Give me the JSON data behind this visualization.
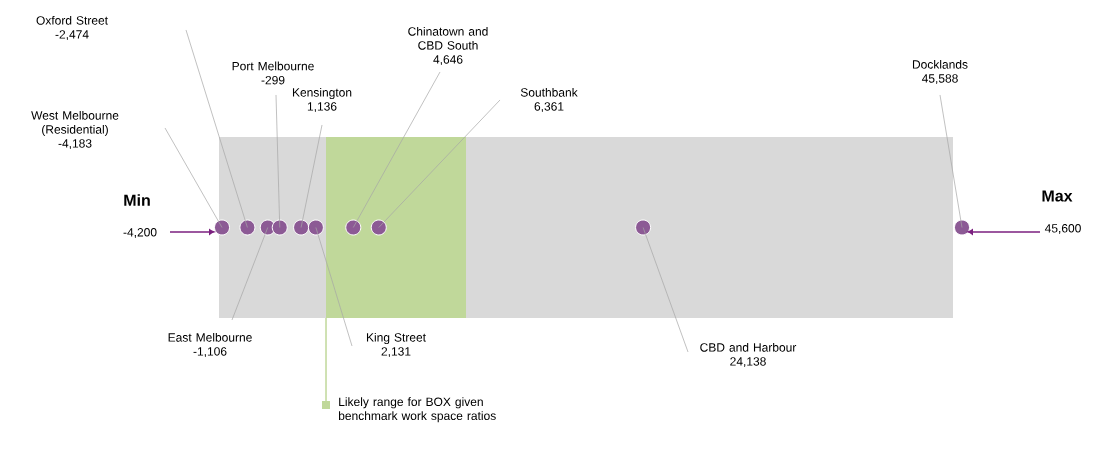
{
  "chart_data": {
    "type": "other",
    "color": "#8c5a95",
    "categories": [
      "West Melbourne (Residential)",
      "Oxford Street",
      "East Melbourne",
      "Port Melbourne",
      "Kensington",
      "King Street",
      "Chinatown and CBD South",
      "Southbank",
      "CBD and Harbour",
      "Docklands"
    ],
    "values": [
      -4183,
      -2474,
      -1106,
      -299,
      1136,
      2131,
      4646,
      6361,
      24138,
      45588
    ],
    "value_labels": [
      "-4,183",
      "-2,474",
      "-1,106",
      "-299",
      "1,136",
      "2,131",
      "4,646",
      "6,361",
      "24,138",
      "45,588"
    ],
    "annotations": [
      "Min",
      "-4,200",
      "Max",
      "45,600",
      "Likely range for BOX given benchmark work space ratios"
    ]
  }
}
